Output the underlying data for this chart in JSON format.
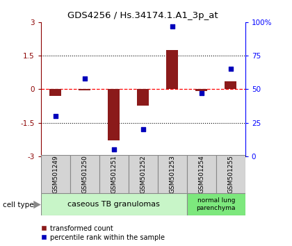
{
  "title": "GDS4256 / Hs.34174.1.A1_3p_at",
  "samples": [
    "GSM501249",
    "GSM501250",
    "GSM501251",
    "GSM501252",
    "GSM501253",
    "GSM501254",
    "GSM501255"
  ],
  "transformed_count": [
    -0.3,
    -0.05,
    -2.3,
    -0.75,
    1.75,
    -0.08,
    0.35
  ],
  "percentile_rank": [
    30,
    58,
    5,
    20,
    97,
    47,
    65
  ],
  "ylim_left": [
    -3,
    3
  ],
  "ylim_right": [
    0,
    100
  ],
  "yticks_left": [
    -3,
    -1.5,
    0,
    1.5,
    3
  ],
  "yticks_right": [
    0,
    25,
    50,
    75,
    100
  ],
  "ytick_labels_right": [
    "0",
    "25",
    "50",
    "75",
    "100%"
  ],
  "bar_color": "#8B1A1A",
  "dot_color": "#0000BB",
  "group1_label": "caseous TB granulomas",
  "group2_label": "normal lung\nparenchyma",
  "cell_type_label": "cell type",
  "legend1_label": "transformed count",
  "legend2_label": "percentile rank within the sample",
  "bar_width": 0.4,
  "plot_bg": "#ffffff",
  "group1_bg": "#c8f5c8",
  "group2_bg": "#7de87d",
  "sample_box_bg": "#d4d4d4",
  "sample_box_edge": "#888888"
}
